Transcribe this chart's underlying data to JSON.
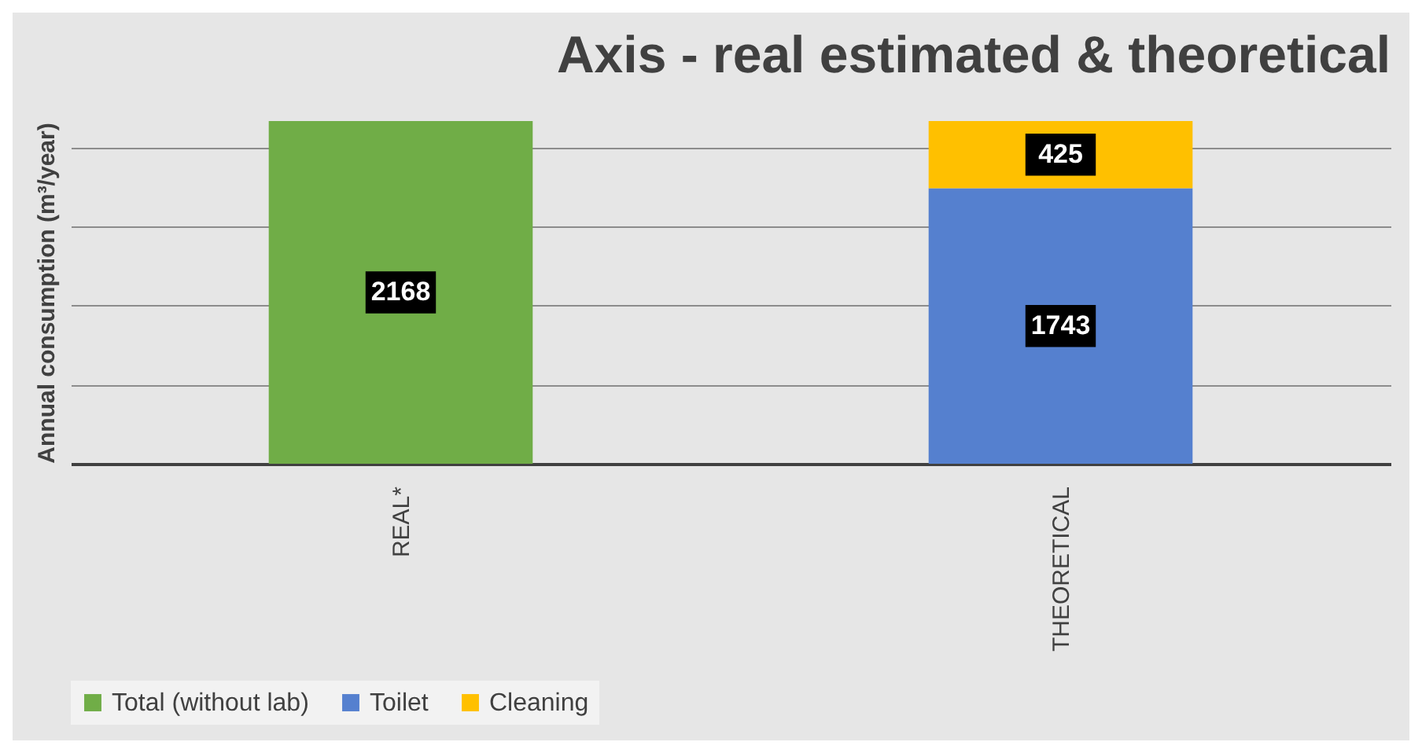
{
  "chart_data": {
    "type": "bar",
    "title": "Axis - real estimated & theoretical",
    "ylabel": "Annual consumption (m³/year)",
    "categories": [
      "REAL*",
      "THEORETICAL"
    ],
    "series": [
      {
        "name": "Total (without lab)",
        "color": "#70ad47",
        "values": [
          2168,
          null
        ]
      },
      {
        "name": "Toilet",
        "color": "#5580cf",
        "values": [
          null,
          1743
        ]
      },
      {
        "name": "Cleaning",
        "color": "#ffc000",
        "values": [
          null,
          425
        ]
      }
    ],
    "stacked": true,
    "data_labels": true,
    "legend": "bottom",
    "grid": "y",
    "tick_labels": "x"
  }
}
